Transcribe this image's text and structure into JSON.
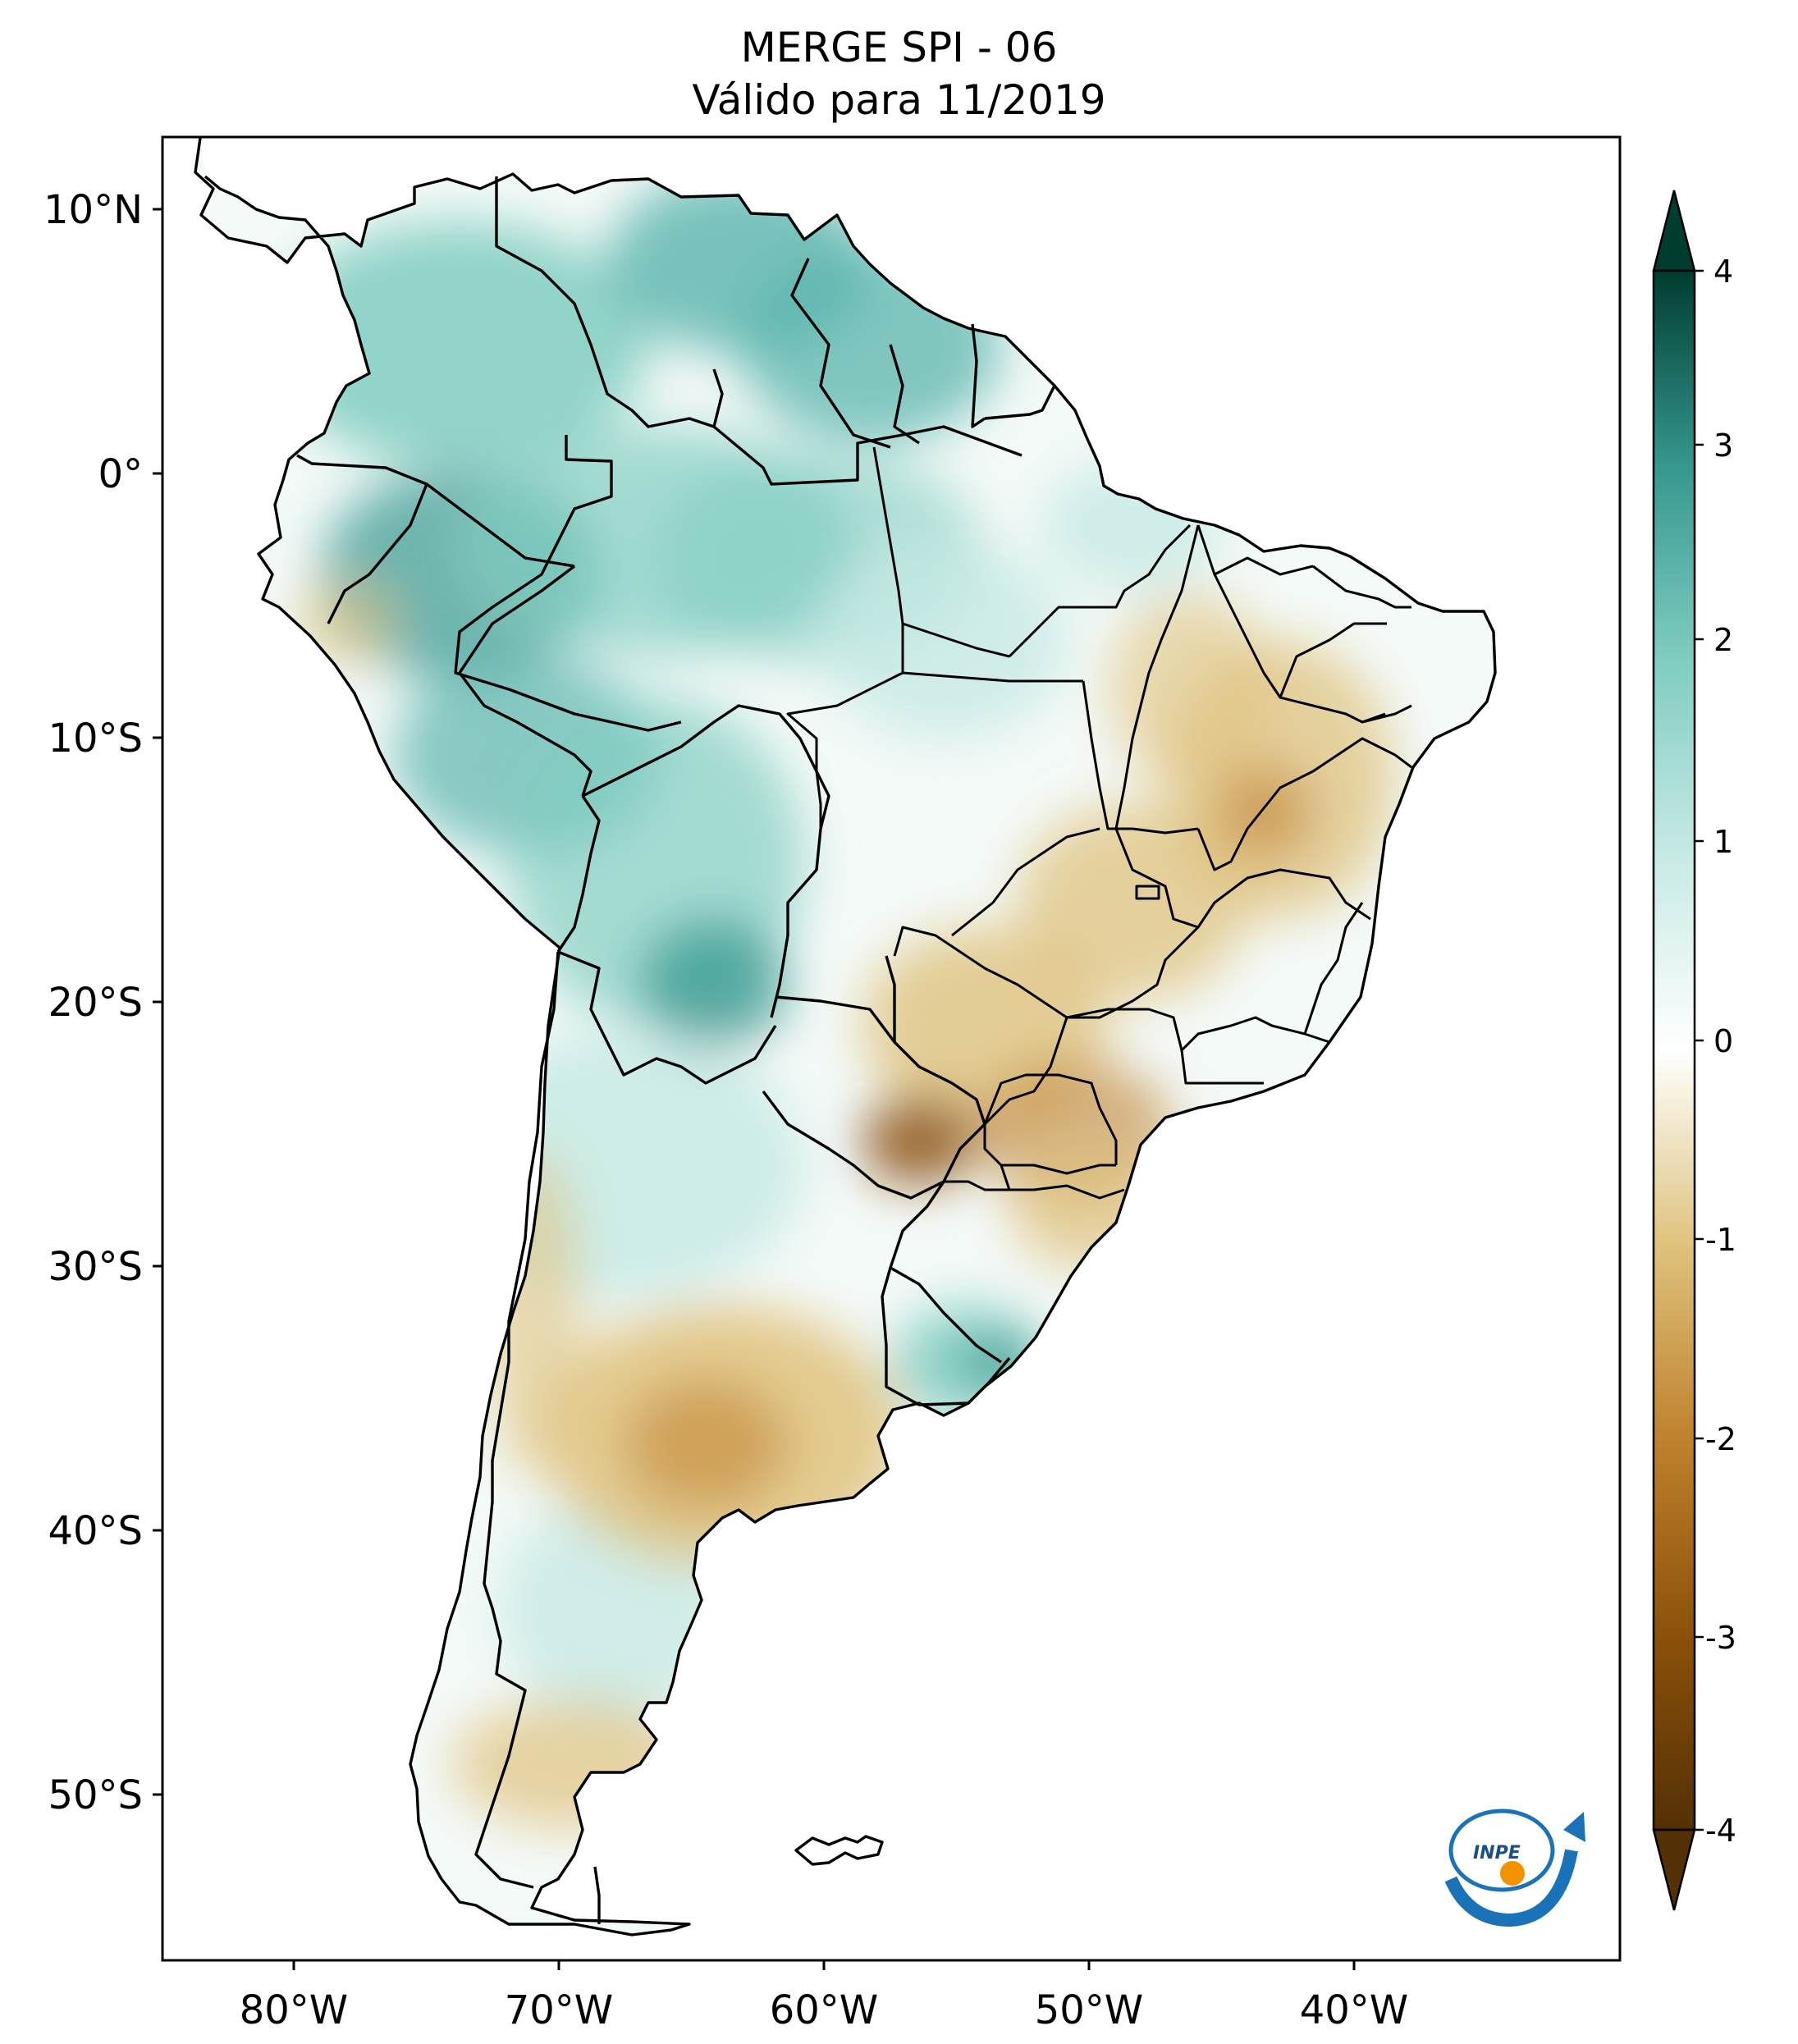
{
  "title": {
    "line1": "MERGE   SPI - 06",
    "line2": "Válido para 11/2019"
  },
  "map": {
    "lon_ticks": [
      "80°W",
      "70°W",
      "60°W",
      "50°W",
      "40°W"
    ],
    "lat_ticks": [
      "10°N",
      "0°",
      "10°S",
      "20°S",
      "30°S",
      "40°S",
      "50°S"
    ],
    "lon_range": [
      -85,
      -30
    ],
    "lat_range": [
      -56,
      13
    ],
    "border_color": "#000000"
  },
  "colorbar": {
    "ticks": [
      "4",
      "3",
      "2",
      "1",
      "0",
      "-1",
      "-2",
      "-3",
      "-4"
    ],
    "range": [
      -4,
      4
    ],
    "extend": "both",
    "colors": {
      "min": "#543005",
      "neg3": "#8c510a",
      "neg2": "#bf812d",
      "neg1": "#dfc27d",
      "zero": "#ffffff",
      "pos1": "#c7eae5",
      "pos2": "#80cdc1",
      "pos3": "#35978f",
      "max": "#003c30"
    }
  },
  "logo": {
    "text": "INPE",
    "icon": "inpe-logo-icon"
  }
}
